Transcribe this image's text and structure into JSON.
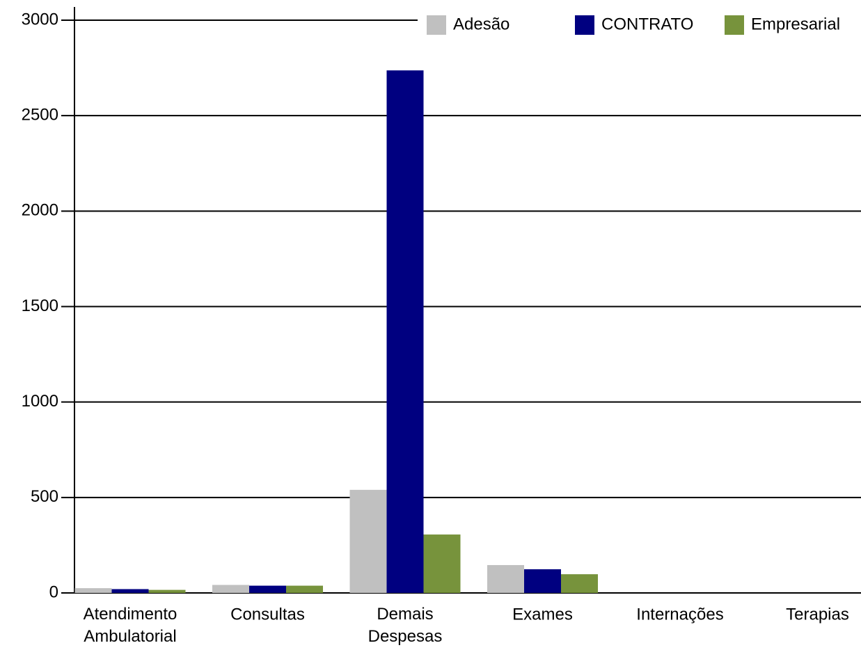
{
  "chart_data": {
    "type": "bar",
    "categories": [
      "Atendimento Ambulatorial",
      "Consultas",
      "Demais Despesas",
      "Exames",
      "Internações",
      "Terapias"
    ],
    "series": [
      {
        "name": "Adesão",
        "color": "#c0c0c0",
        "values": [
          25,
          42,
          540,
          146,
          0,
          0
        ]
      },
      {
        "name": "CONTRATO",
        "color": "#000080",
        "values": [
          20,
          38,
          2737,
          124,
          0,
          0
        ]
      },
      {
        "name": "Empresarial",
        "color": "#77933c",
        "values": [
          16,
          38,
          306,
          98,
          0,
          0
        ]
      }
    ],
    "ylim": [
      0,
      3000
    ],
    "yticks": [
      0,
      500,
      1000,
      1500,
      2000,
      2500,
      3000
    ],
    "grid": true,
    "legend": "top-right"
  }
}
